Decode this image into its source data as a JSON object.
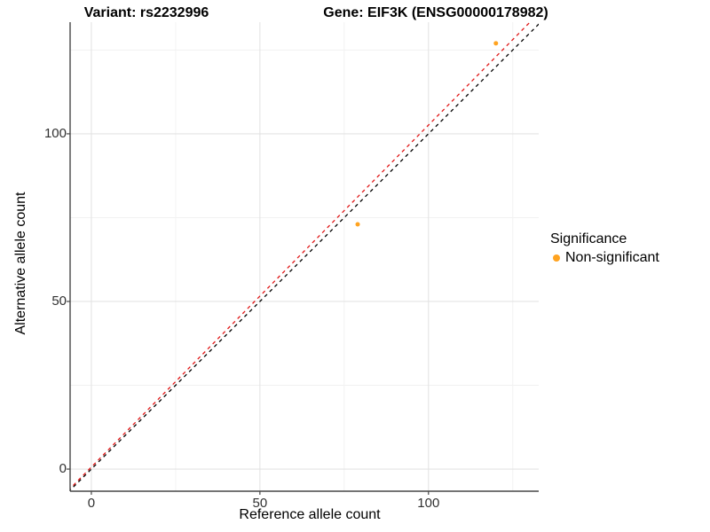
{
  "chart_data": {
    "type": "scatter",
    "title_left": "Variant: rs2232996",
    "title_right": "Gene: EIF3K (ENSG00000178982)",
    "xlabel": "Reference allele count",
    "ylabel": "Alternative allele count",
    "xlim": [
      -6.3,
      132.7
    ],
    "ylim": [
      -6.6,
      133.3
    ],
    "x_ticks": [
      0,
      50,
      100
    ],
    "y_ticks": [
      0,
      50,
      100
    ],
    "x_minor_ticks": [
      25,
      75,
      125
    ],
    "y_minor_ticks": [
      25,
      75,
      125
    ],
    "grid": "major and minor, light gray on white",
    "series": [
      {
        "name": "Non-significant",
        "color": "#FFA320",
        "point_radius": 2.5,
        "points": [
          {
            "x": 120,
            "y": 127
          },
          {
            "x": 79,
            "y": 73
          }
        ]
      }
    ],
    "lines": [
      {
        "name": "identity",
        "slope": 1.0,
        "intercept": 0.0,
        "color": "#000000",
        "style": "dashed"
      },
      {
        "name": "fit",
        "slope": 1.02,
        "intercept": 0.6,
        "color": "#E01616",
        "style": "dashed"
      }
    ],
    "legend": {
      "title": "Significance",
      "position": "right",
      "items": [
        {
          "label": "Non-significant",
          "color": "#FFA320"
        }
      ]
    },
    "colors": {
      "axis_line": "#464646",
      "tick_label": "#303030",
      "major_grid": "#E3E3E3",
      "minor_grid": "#F1F1F1",
      "background": "#FFFFFF"
    }
  }
}
